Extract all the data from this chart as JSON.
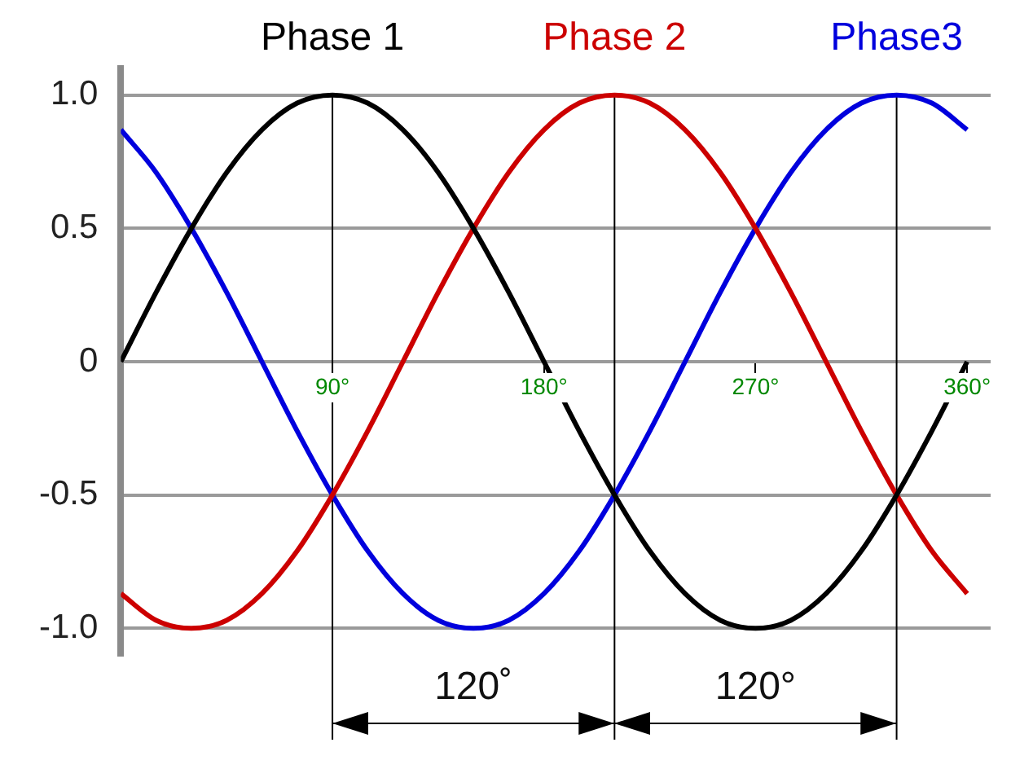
{
  "chart_data": {
    "type": "line",
    "x": [
      0,
      15,
      30,
      45,
      60,
      75,
      90,
      105,
      120,
      135,
      150,
      165,
      180,
      195,
      210,
      225,
      240,
      255,
      270,
      285,
      300,
      315,
      330,
      345,
      360
    ],
    "series": [
      {
        "name": "Phase 1",
        "color": "#000000",
        "values": [
          0,
          0.26,
          0.5,
          0.71,
          0.87,
          0.97,
          1,
          0.97,
          0.87,
          0.71,
          0.5,
          0.26,
          0,
          -0.26,
          -0.5,
          -0.71,
          -0.87,
          -0.97,
          -1,
          -0.97,
          -0.87,
          -0.71,
          -0.5,
          -0.26,
          0
        ]
      },
      {
        "name": "Phase 2",
        "color": "#cc0000",
        "values": [
          -0.87,
          -0.97,
          -1,
          -0.97,
          -0.87,
          -0.71,
          -0.5,
          -0.26,
          0,
          0.26,
          0.5,
          0.71,
          0.87,
          0.97,
          1,
          0.97,
          0.87,
          0.71,
          0.5,
          0.26,
          0,
          -0.26,
          -0.5,
          -0.71,
          -0.87
        ]
      },
      {
        "name": "Phase3",
        "color": "#0000dd",
        "values": [
          0.87,
          0.71,
          0.5,
          0.26,
          0,
          -0.26,
          -0.5,
          -0.71,
          -0.87,
          -0.97,
          -1,
          -0.97,
          -0.87,
          -0.71,
          -0.5,
          -0.26,
          0,
          0.26,
          0.5,
          0.71,
          0.87,
          0.97,
          1,
          0.97,
          0.87
        ]
      }
    ],
    "xlim": [
      0,
      370
    ],
    "ylim": [
      -1.1,
      1.1
    ],
    "xticks": [
      {
        "value": 90,
        "label": "90°"
      },
      {
        "value": 180,
        "label": "180°"
      },
      {
        "value": 270,
        "label": "270°"
      },
      {
        "value": 360,
        "label": "360°"
      }
    ],
    "yticks": [
      {
        "value": -1,
        "label": "-1.0"
      },
      {
        "value": -0.5,
        "label": "-0.5"
      },
      0,
      {
        "value": 0.5,
        "label": "0.5"
      },
      {
        "value": 1,
        "label": "1.0"
      }
    ],
    "grid": "y",
    "marker": "none",
    "ref_lines": [
      {
        "axis": "x",
        "value": 90,
        "color": "#000000"
      },
      {
        "axis": "x",
        "value": 210,
        "color": "#000000"
      },
      {
        "axis": "x",
        "value": 330,
        "color": "#000000"
      }
    ],
    "annotations": [
      "120˚",
      "120°"
    ]
  }
}
